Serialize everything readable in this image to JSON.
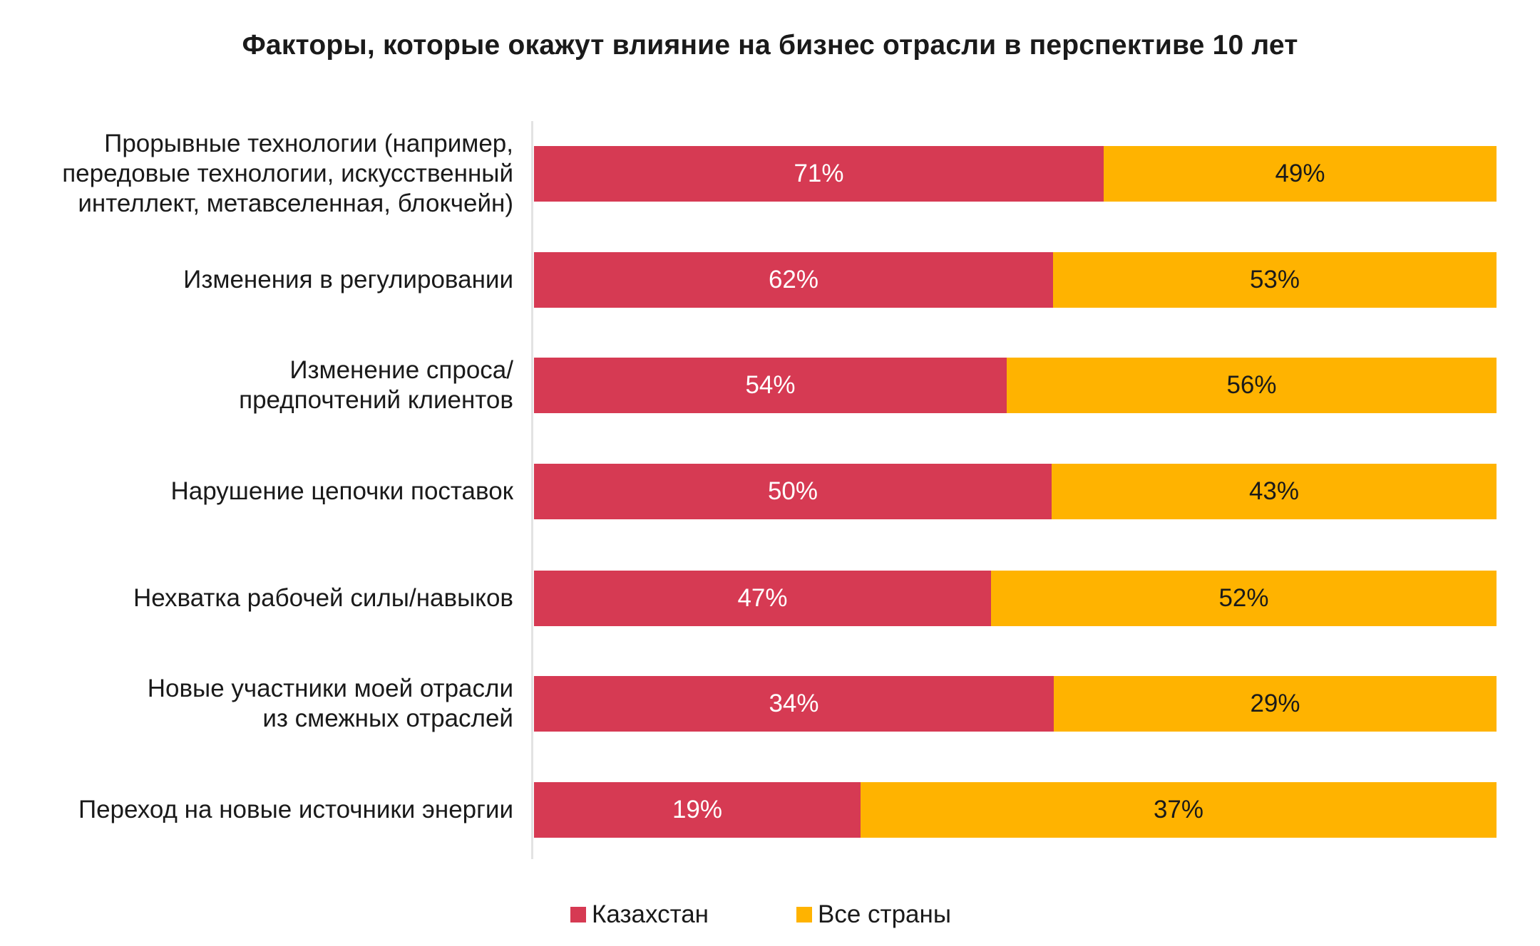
{
  "colors": {
    "kazakhstan": "#d63a53",
    "all_countries": "#ffb300"
  },
  "chart_data": {
    "type": "bar",
    "stacked": true,
    "orientation": "horizontal",
    "title": "Факторы, которые окажут влияние на бизнес отрасли в перспективе 10 лет",
    "categories": [
      [
        "Прорывные технологии (например,",
        "передовые технологии, искусственный",
        "интеллект, метавселенная, блокчейн)"
      ],
      [
        "Изменения в регулировании"
      ],
      [
        "Изменение спроса/",
        "предпочтений клиентов"
      ],
      [
        "Нарушение цепочки поставок"
      ],
      [
        "Нехватка рабочей силы/навыков"
      ],
      [
        "Новые участники моей отрасли",
        "из смежных отраслей"
      ],
      [
        "Переход на новые источники энергии"
      ]
    ],
    "series": [
      {
        "name": "Казахстан",
        "values": [
          71,
          62,
          54,
          50,
          47,
          34,
          19
        ],
        "labels": [
          "71%",
          "62%",
          "54%",
          "50%",
          "47%",
          "34%",
          "19%"
        ]
      },
      {
        "name": "Все страны",
        "values": [
          49,
          53,
          56,
          43,
          52,
          29,
          37
        ],
        "labels": [
          "49%",
          "53%",
          "56%",
          "43%",
          "52%",
          "29%",
          "37%"
        ]
      }
    ],
    "value_unit": "%",
    "bar_normalization": "100% per row",
    "legend_position": "bottom"
  }
}
